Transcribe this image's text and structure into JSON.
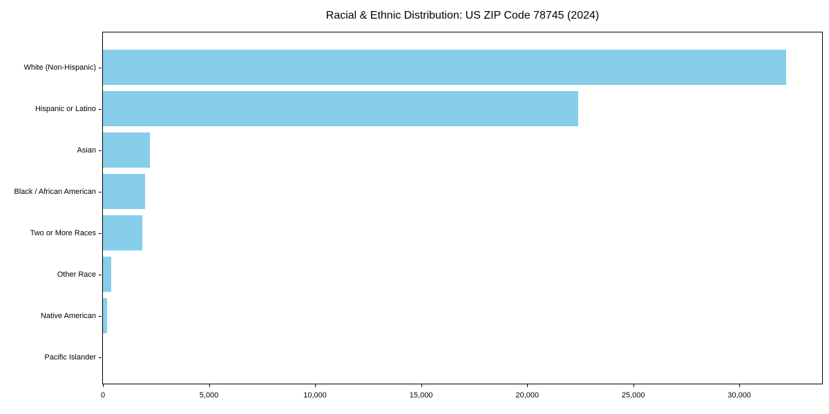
{
  "chart_data": {
    "type": "bar",
    "orientation": "horizontal",
    "title": "Racial & Ethnic Distribution: US ZIP Code 78745 (2024)",
    "categories": [
      "White (Non-Hispanic)",
      "Hispanic or Latino",
      "Asian",
      "Black / African American",
      "Two or More Races",
      "Other Race",
      "Native American",
      "Pacific Islander"
    ],
    "values": [
      32200,
      22400,
      2200,
      2000,
      1850,
      400,
      200,
      0
    ],
    "xlabel": "",
    "ylabel": "",
    "xlim": [
      0,
      33900
    ],
    "xticks": [
      0,
      5000,
      10000,
      15000,
      20000,
      25000,
      30000
    ],
    "xtick_labels": [
      "0",
      "5,000",
      "10,000",
      "15,000",
      "20,000",
      "25,000",
      "30,000"
    ],
    "bar_color": "#87CEEB",
    "axis_color": "#000000",
    "background_color": "#FFFFFF",
    "grid": false,
    "legend": null
  }
}
